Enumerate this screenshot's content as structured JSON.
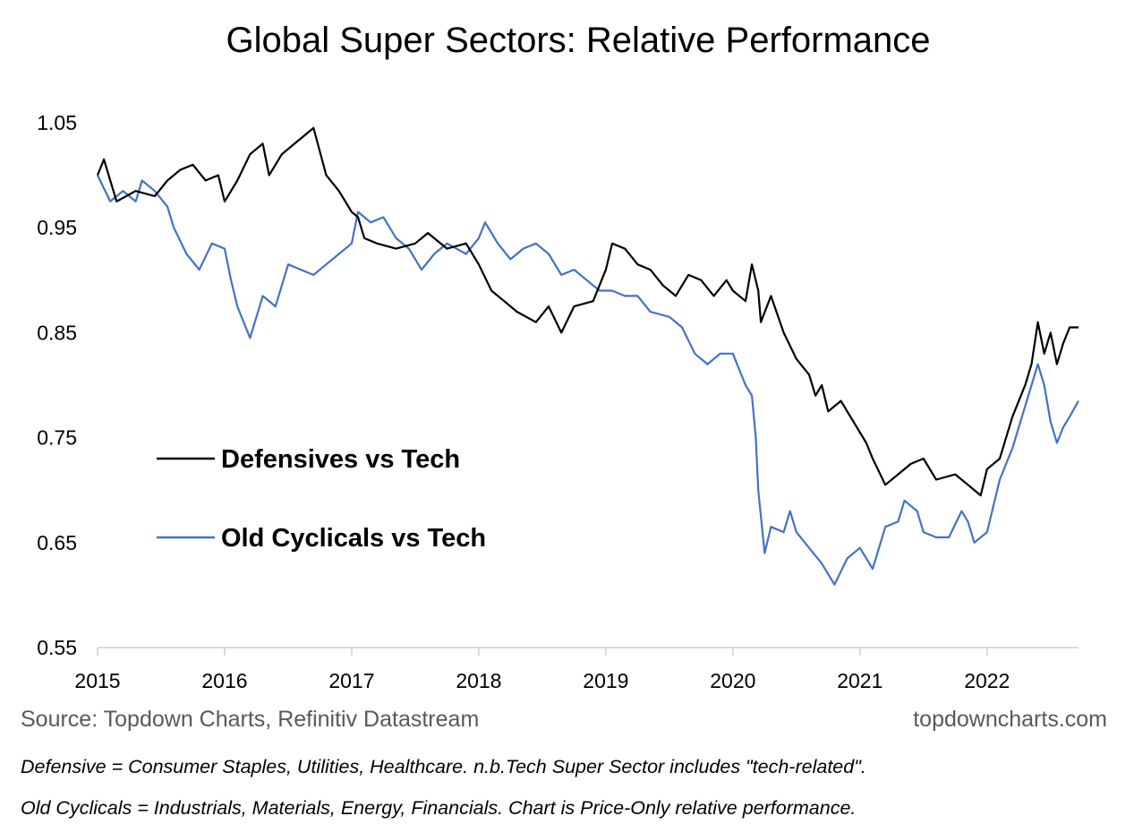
{
  "chart_data": {
    "type": "line",
    "title": "Global Super Sectors: Relative Performance",
    "xlabel": "",
    "ylabel": "",
    "xlim": [
      2015,
      2022.72
    ],
    "ylim": [
      0.55,
      1.05
    ],
    "yticks": [
      "0.55",
      "0.65",
      "0.75",
      "0.85",
      "0.95",
      "1.05"
    ],
    "xticks": [
      "2015",
      "2016",
      "2017",
      "2018",
      "2019",
      "2020",
      "2021",
      "2022"
    ],
    "grid": false,
    "legend_position": "center-left",
    "series": [
      {
        "name": "Defensives vs Tech",
        "color": "#000000",
        "x": [
          2015.0,
          2015.05,
          2015.15,
          2015.3,
          2015.45,
          2015.55,
          2015.65,
          2015.75,
          2015.85,
          2015.95,
          2016.0,
          2016.1,
          2016.2,
          2016.3,
          2016.35,
          2016.45,
          2016.55,
          2016.7,
          2016.8,
          2016.9,
          2017.0,
          2017.05,
          2017.1,
          2017.2,
          2017.35,
          2017.5,
          2017.6,
          2017.75,
          2017.9,
          2018.0,
          2018.1,
          2018.2,
          2018.3,
          2018.45,
          2018.55,
          2018.65,
          2018.75,
          2018.9,
          2019.0,
          2019.05,
          2019.15,
          2019.25,
          2019.35,
          2019.45,
          2019.55,
          2019.65,
          2019.75,
          2019.85,
          2019.95,
          2020.0,
          2020.1,
          2020.15,
          2020.2,
          2020.22,
          2020.3,
          2020.4,
          2020.5,
          2020.6,
          2020.65,
          2020.7,
          2020.75,
          2020.85,
          2020.95,
          2021.05,
          2021.1,
          2021.2,
          2021.3,
          2021.4,
          2021.5,
          2021.6,
          2021.75,
          2021.85,
          2021.95,
          2022.0,
          2022.1,
          2022.2,
          2022.3,
          2022.35,
          2022.4,
          2022.45,
          2022.5,
          2022.55,
          2022.6,
          2022.65,
          2022.72
        ],
        "values": [
          1.0,
          1.015,
          0.975,
          0.985,
          0.98,
          0.995,
          1.005,
          1.01,
          0.995,
          1.0,
          0.975,
          0.995,
          1.02,
          1.03,
          1.0,
          1.02,
          1.03,
          1.045,
          1.0,
          0.985,
          0.965,
          0.96,
          0.94,
          0.935,
          0.93,
          0.935,
          0.945,
          0.93,
          0.935,
          0.915,
          0.89,
          0.88,
          0.87,
          0.86,
          0.875,
          0.85,
          0.875,
          0.88,
          0.91,
          0.935,
          0.93,
          0.915,
          0.91,
          0.895,
          0.885,
          0.905,
          0.9,
          0.885,
          0.9,
          0.89,
          0.88,
          0.915,
          0.89,
          0.86,
          0.885,
          0.85,
          0.825,
          0.81,
          0.79,
          0.8,
          0.775,
          0.785,
          0.765,
          0.745,
          0.73,
          0.705,
          0.715,
          0.725,
          0.73,
          0.71,
          0.715,
          0.705,
          0.695,
          0.72,
          0.73,
          0.77,
          0.8,
          0.82,
          0.86,
          0.83,
          0.85,
          0.82,
          0.84,
          0.855,
          0.855
        ]
      },
      {
        "name": "Old Cyclicals vs Tech",
        "color": "#4472C4",
        "x": [
          2015.0,
          2015.1,
          2015.2,
          2015.3,
          2015.35,
          2015.45,
          2015.55,
          2015.6,
          2015.7,
          2015.8,
          2015.9,
          2016.0,
          2016.05,
          2016.1,
          2016.2,
          2016.3,
          2016.4,
          2016.5,
          2016.6,
          2016.7,
          2016.8,
          2016.9,
          2017.0,
          2017.05,
          2017.15,
          2017.25,
          2017.35,
          2017.45,
          2017.55,
          2017.65,
          2017.75,
          2017.9,
          2018.0,
          2018.05,
          2018.15,
          2018.25,
          2018.35,
          2018.45,
          2018.55,
          2018.65,
          2018.75,
          2018.85,
          2018.95,
          2019.05,
          2019.15,
          2019.25,
          2019.35,
          2019.5,
          2019.6,
          2019.7,
          2019.8,
          2019.9,
          2020.0,
          2020.1,
          2020.15,
          2020.18,
          2020.2,
          2020.25,
          2020.3,
          2020.4,
          2020.45,
          2020.5,
          2020.6,
          2020.7,
          2020.8,
          2020.9,
          2021.0,
          2021.1,
          2021.2,
          2021.3,
          2021.35,
          2021.45,
          2021.5,
          2021.6,
          2021.7,
          2021.8,
          2021.85,
          2021.9,
          2022.0,
          2022.1,
          2022.2,
          2022.3,
          2022.35,
          2022.4,
          2022.45,
          2022.5,
          2022.55,
          2022.6,
          2022.65,
          2022.72
        ],
        "values": [
          1.0,
          0.975,
          0.985,
          0.975,
          0.995,
          0.985,
          0.97,
          0.95,
          0.925,
          0.91,
          0.935,
          0.93,
          0.9,
          0.875,
          0.845,
          0.885,
          0.875,
          0.915,
          0.91,
          0.905,
          0.915,
          0.925,
          0.935,
          0.965,
          0.955,
          0.96,
          0.94,
          0.93,
          0.91,
          0.925,
          0.935,
          0.925,
          0.94,
          0.955,
          0.935,
          0.92,
          0.93,
          0.935,
          0.925,
          0.905,
          0.91,
          0.9,
          0.89,
          0.89,
          0.885,
          0.885,
          0.87,
          0.865,
          0.855,
          0.83,
          0.82,
          0.83,
          0.83,
          0.8,
          0.79,
          0.75,
          0.7,
          0.64,
          0.665,
          0.66,
          0.68,
          0.66,
          0.645,
          0.63,
          0.61,
          0.635,
          0.645,
          0.625,
          0.665,
          0.67,
          0.69,
          0.68,
          0.66,
          0.655,
          0.655,
          0.68,
          0.67,
          0.65,
          0.66,
          0.71,
          0.74,
          0.78,
          0.8,
          0.82,
          0.8,
          0.765,
          0.745,
          0.76,
          0.77,
          0.785
        ]
      }
    ]
  },
  "footer": {
    "source": "Source: Topdown Charts, Refinitiv Datastream",
    "website": "topdowncharts.com",
    "note1": "Defensive = Consumer Staples, Utilities, Healthcare.  n.b.Tech Super Sector includes \"tech-related\".",
    "note2": "Old Cyclicals = Industrials, Materials, Energy, Financials.  Chart is Price-Only relative performance."
  }
}
